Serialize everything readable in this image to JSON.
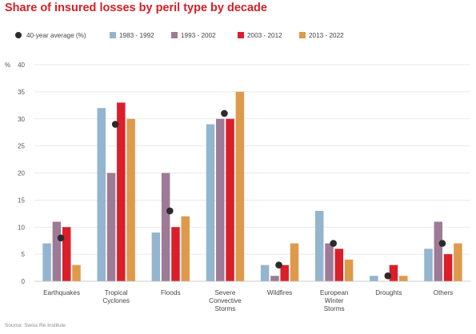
{
  "chart_data": {
    "type": "bar",
    "title": "Share of insured losses by peril type by decade",
    "ylabel": "%",
    "ylim": [
      0,
      40
    ],
    "yticks": [
      0,
      5,
      10,
      15,
      20,
      25,
      30,
      35,
      40
    ],
    "grid": true,
    "legend_position": "top",
    "categories": [
      [
        "Earthquakes"
      ],
      [
        "Tropical",
        "Cyclones"
      ],
      [
        "Floods"
      ],
      [
        "Severe",
        "Convective",
        "Storms"
      ],
      [
        "Wildfires"
      ],
      [
        "European",
        "Winter",
        "Storms"
      ],
      [
        "Droughts"
      ],
      [
        "Others"
      ]
    ],
    "series": [
      {
        "name": "1983 - 1992",
        "color": "#93b5cf",
        "values": [
          7,
          32,
          9,
          29,
          3,
          13,
          1,
          6
        ]
      },
      {
        "name": "1993 - 2002",
        "color": "#9d7b96",
        "values": [
          11,
          20,
          20,
          30,
          1,
          7,
          0,
          11
        ]
      },
      {
        "name": "2003 - 2012",
        "color": "#db1f2a",
        "values": [
          10,
          33,
          10,
          30,
          3,
          6,
          3,
          5
        ]
      },
      {
        "name": "2013 - 2022",
        "color": "#de9a4b",
        "values": [
          3,
          30,
          12,
          35,
          7,
          4,
          1,
          7
        ]
      }
    ],
    "average": {
      "name": "40-year average (%)",
      "color": "#2b2b2b",
      "values": [
        8,
        29,
        13,
        31,
        3,
        7,
        1,
        7
      ]
    },
    "source": "Source: Swiss Re Institute"
  }
}
